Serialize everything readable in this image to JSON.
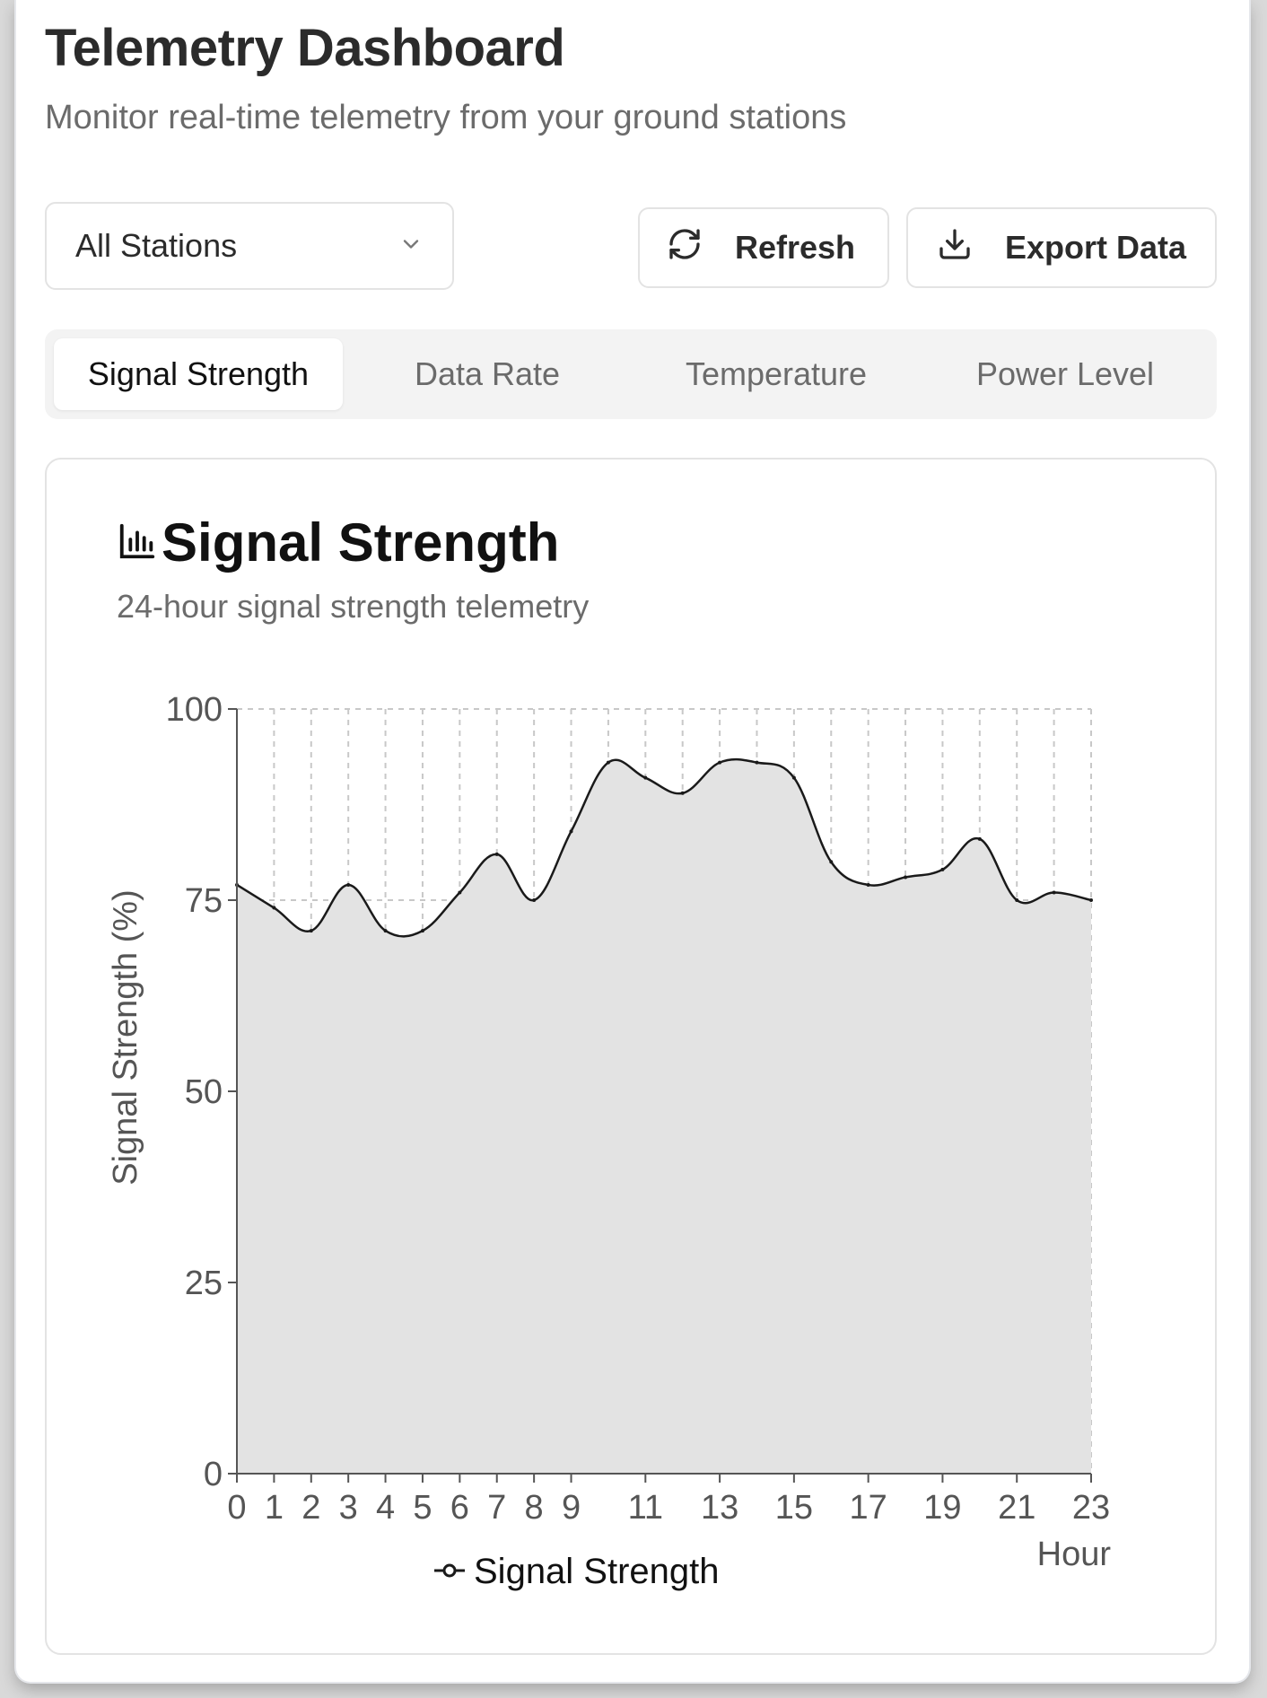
{
  "header": {
    "title": "Telemetry Dashboard",
    "subtitle": "Monitor real-time telemetry from your ground stations"
  },
  "toolbar": {
    "station_select": "All Stations",
    "refresh_label": "Refresh",
    "export_label": "Export Data"
  },
  "tabs": [
    {
      "label": "Signal Strength",
      "active": true
    },
    {
      "label": "Data Rate",
      "active": false
    },
    {
      "label": "Temperature",
      "active": false
    },
    {
      "label": "Power Level",
      "active": false
    }
  ],
  "card": {
    "title": "Signal Strength",
    "subtitle": "24-hour signal strength telemetry",
    "icon": "bar-chart-icon"
  },
  "chart_data": {
    "type": "area",
    "x": [
      0,
      1,
      2,
      3,
      4,
      5,
      6,
      7,
      8,
      9,
      10,
      11,
      12,
      13,
      14,
      15,
      16,
      17,
      18,
      19,
      20,
      21,
      22,
      23
    ],
    "series": [
      {
        "name": "Signal Strength",
        "values": [
          77,
          74,
          71,
          77,
          71,
          71,
          76,
          81,
          75,
          84,
          93,
          91,
          89,
          93,
          93,
          91,
          80,
          77,
          78,
          79,
          83,
          75,
          76,
          75
        ]
      }
    ],
    "xticks": [
      0,
      1,
      2,
      3,
      4,
      5,
      6,
      7,
      8,
      9,
      11,
      13,
      15,
      17,
      19,
      21,
      23
    ],
    "yticks": [
      0,
      25,
      50,
      75,
      100
    ],
    "xlabel": "Hour",
    "ylabel": "Signal Strength (%)",
    "ylim": [
      0,
      100
    ],
    "xlim": [
      0,
      23
    ],
    "grid": true,
    "legend": "bottom-center",
    "colors": {
      "line": "#1a1a1a",
      "fill": "#e3e3e3",
      "grid": "#c8c8c8"
    }
  }
}
